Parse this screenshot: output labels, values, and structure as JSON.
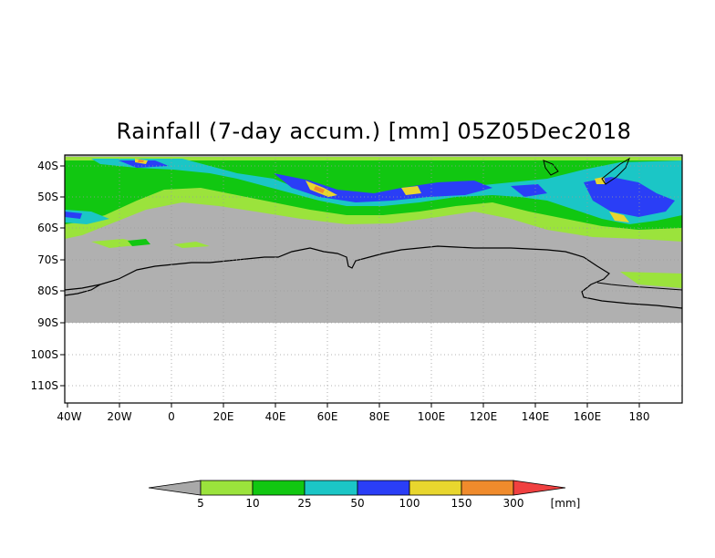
{
  "title": "Rainfall (7-day accum.) [mm] 05Z05Dec2018",
  "map": {
    "lat_labels": [
      "40S",
      "50S",
      "60S",
      "70S",
      "80S",
      "90S",
      "100S",
      "110S"
    ],
    "lon_labels": [
      "40W",
      "20W",
      "0",
      "20E",
      "40E",
      "60E",
      "80E",
      "100E",
      "120E",
      "140E",
      "160E",
      "180"
    ],
    "no_data_color": "#b0b0b0",
    "coastline_color": "#000000",
    "grid": "dotted"
  },
  "colorbar": {
    "unit": "[mm]",
    "thresholds": [
      "5",
      "10",
      "25",
      "50",
      "100",
      "150",
      "300"
    ],
    "colors": [
      "#a9a9a9",
      "#9be33c",
      "#11c711",
      "#1bc6c6",
      "#2a3ef6",
      "#e8d62e",
      "#f08b2c",
      "#f04040"
    ]
  }
}
